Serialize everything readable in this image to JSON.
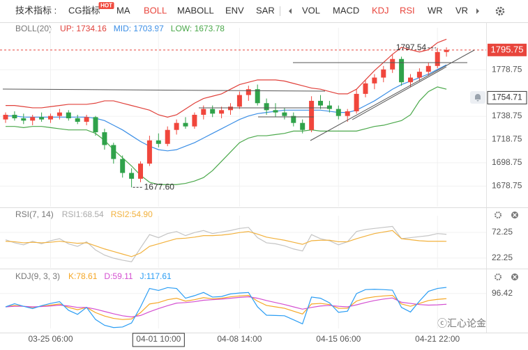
{
  "toolbar": {
    "label": "技术指标 :",
    "tabs": [
      {
        "name": "CG指标",
        "badge": "HOT"
      },
      {
        "name": "MA"
      },
      {
        "name": "BOLL",
        "active": true
      },
      {
        "name": "MABOLL"
      },
      {
        "name": "ENV"
      },
      {
        "name": "SAR"
      },
      {
        "name": "VOL"
      },
      {
        "name": "MACD"
      },
      {
        "name": "KDJ",
        "active": true
      },
      {
        "name": "RSI",
        "active": true
      },
      {
        "name": "WR"
      },
      {
        "name": "VR"
      }
    ]
  },
  "watermark": "ⓒ汇心论金",
  "chart_data": [
    {
      "type": "candlestick",
      "legend_title": "BOLL(20)",
      "categories": [
        null,
        null,
        null,
        null,
        null,
        "03-25 06:00",
        null,
        null,
        null,
        null,
        null,
        null,
        null,
        null,
        null,
        null,
        null,
        "04-01 10:00",
        null,
        null,
        null,
        null,
        null,
        null,
        null,
        null,
        "04-08 14:00",
        null,
        null,
        null,
        null,
        null,
        null,
        null,
        null,
        null,
        null,
        "04-15 06:00",
        null,
        null,
        null,
        null,
        null,
        null,
        null,
        null,
        null,
        null,
        "04-21 22:00",
        null
      ],
      "open": [
        1736,
        1740,
        1737,
        1735,
        1738,
        1736,
        1739,
        1742,
        1737,
        1734,
        1738,
        1725,
        1714,
        1702,
        1690,
        1685,
        1698,
        1718,
        1715,
        1727,
        1733,
        1730,
        1740,
        1745,
        1741,
        1744,
        1747,
        1757,
        1762,
        1750,
        1744,
        1742,
        1739,
        1733,
        1727,
        1752,
        1748,
        1745,
        1739,
        1743,
        1758,
        1767,
        1772,
        1779,
        1788,
        1768,
        1772,
        1777,
        1782,
        1794
      ],
      "high": [
        1742,
        1743,
        1741,
        1740,
        1742,
        1741,
        1745,
        1744,
        1740,
        1740,
        1739,
        1728,
        1716,
        1705,
        1694,
        1700,
        1722,
        1724,
        1730,
        1736,
        1738,
        1742,
        1748,
        1748,
        1747,
        1750,
        1760,
        1765,
        1766,
        1754,
        1750,
        1746,
        1742,
        1736,
        1756,
        1757,
        1752,
        1748,
        1745,
        1762,
        1770,
        1775,
        1782,
        1792,
        1790,
        1775,
        1780,
        1785,
        1797.54,
        1798
      ],
      "low": [
        1733,
        1735,
        1732,
        1731,
        1734,
        1733,
        1736,
        1735,
        1732,
        1731,
        1722,
        1710,
        1698,
        1686,
        1677.6,
        1682,
        1696,
        1712,
        1713,
        1723,
        1728,
        1728,
        1736,
        1738,
        1737,
        1740,
        1745,
        1752,
        1748,
        1740,
        1738,
        1736,
        1730,
        1724,
        1725,
        1745,
        1742,
        1736,
        1734,
        1741,
        1755,
        1762,
        1768,
        1776,
        1765,
        1764,
        1769,
        1774,
        1780,
        1790
      ],
      "close": [
        1740,
        1737,
        1735,
        1738,
        1736,
        1739,
        1742,
        1737,
        1734,
        1738,
        1725,
        1714,
        1702,
        1690,
        1685,
        1698,
        1718,
        1715,
        1727,
        1733,
        1730,
        1740,
        1745,
        1741,
        1744,
        1747,
        1757,
        1762,
        1750,
        1744,
        1742,
        1739,
        1733,
        1727,
        1752,
        1748,
        1745,
        1739,
        1743,
        1758,
        1767,
        1772,
        1779,
        1788,
        1768,
        1772,
        1777,
        1782,
        1794,
        1795.75
      ],
      "up_color": "#f0463c",
      "down_color": "#2fa24a",
      "series": [
        {
          "name": "UP",
          "legend_label": "UP: 1734.16",
          "color": "#e0403a",
          "values": [
            1748,
            1748,
            1747,
            1746,
            1746,
            1747,
            1748,
            1749,
            1749,
            1749,
            1750,
            1752,
            1752,
            1750,
            1748,
            1746,
            1744,
            1740,
            1738,
            1740,
            1745,
            1750,
            1754,
            1756,
            1758,
            1762,
            1766,
            1768,
            1770,
            1770,
            1770,
            1769,
            1767,
            1765,
            1763,
            1762,
            1760,
            1758,
            1758,
            1762,
            1770,
            1778,
            1785,
            1792,
            1798,
            1796,
            1794,
            1796,
            1802,
            1805
          ]
        },
        {
          "name": "MID",
          "legend_label": "MID: 1703.97",
          "color": "#3a8ee6",
          "values": [
            1739,
            1739,
            1738,
            1738,
            1738,
            1738,
            1738,
            1738,
            1738,
            1738,
            1737,
            1735,
            1731,
            1727,
            1722,
            1717,
            1713,
            1710,
            1709,
            1710,
            1713,
            1716,
            1720,
            1724,
            1728,
            1732,
            1736,
            1739,
            1741,
            1742,
            1743,
            1744,
            1744,
            1744,
            1744,
            1744,
            1743,
            1742,
            1742,
            1744,
            1748,
            1752,
            1757,
            1762,
            1766,
            1769,
            1772,
            1775,
            1779,
            1783
          ]
        },
        {
          "name": "LOW",
          "legend_label": "LOW: 1673.78",
          "color": "#4aa84a",
          "values": [
            1730,
            1730,
            1729,
            1730,
            1730,
            1729,
            1728,
            1727,
            1727,
            1727,
            1724,
            1718,
            1710,
            1703,
            1696,
            1688,
            1682,
            1680,
            1680,
            1680,
            1681,
            1683,
            1686,
            1692,
            1700,
            1708,
            1716,
            1720,
            1722,
            1722,
            1723,
            1724,
            1726,
            1726,
            1727,
            1726,
            1726,
            1726,
            1726,
            1726,
            1728,
            1730,
            1731,
            1733,
            1735,
            1740,
            1752,
            1760,
            1764,
            1762
          ]
        }
      ],
      "ylim": [
        1661,
        1810
      ],
      "yticks": [
        1678.75,
        1698.75,
        1718.75,
        1738.75,
        1778.75
      ],
      "grid": true,
      "last_price": 1795.75,
      "crosshair": {
        "index": 17,
        "price": 1754.71
      },
      "annotations": [
        {
          "index": 48,
          "value": 1797.54,
          "side": "left"
        },
        {
          "index": 14,
          "value": 1677.6,
          "label": "1677.60",
          "side": "right"
        }
      ]
    },
    {
      "type": "line",
      "legend_title": "RSI(7, 14)",
      "series": [
        {
          "name": "RSI1",
          "legend_label": "RSI1:68.54",
          "color": "#c4c4c4",
          "values": [
            58,
            52,
            48,
            55,
            50,
            56,
            60,
            50,
            45,
            54,
            38,
            28,
            22,
            18,
            15,
            42,
            68,
            62,
            70,
            74,
            66,
            72,
            76,
            70,
            73,
            76,
            80,
            82,
            62,
            52,
            50,
            46,
            40,
            36,
            68,
            60,
            56,
            48,
            54,
            74,
            78,
            80,
            82,
            84,
            60,
            62,
            64,
            66,
            70,
            68.54
          ]
        },
        {
          "name": "RSI2",
          "legend_label": "RSI2:54.90",
          "color": "#f2b13c",
          "values": [
            55,
            54,
            52,
            53,
            52,
            53,
            55,
            53,
            51,
            52,
            46,
            40,
            35,
            30,
            25,
            32,
            45,
            50,
            55,
            60,
            61,
            63,
            66,
            66,
            67,
            69,
            72,
            74,
            69,
            63,
            60,
            57,
            53,
            49,
            56,
            57,
            57,
            54,
            54,
            60,
            65,
            70,
            73,
            76,
            60,
            58,
            56,
            55,
            55,
            54.9
          ]
        }
      ],
      "ylim": [
        3,
        94
      ],
      "yticks": [
        72.25,
        22.25
      ],
      "grid": true
    },
    {
      "type": "line",
      "legend_title": "KDJ(9, 3, 3)",
      "series": [
        {
          "name": "K",
          "legend_label": "K:78.61",
          "color": "#f5a623",
          "values": [
            50,
            55,
            52,
            48,
            52,
            56,
            60,
            48,
            40,
            48,
            30,
            18,
            10,
            6,
            8,
            30,
            60,
            65,
            75,
            80,
            70,
            75,
            82,
            78,
            80,
            85,
            88,
            90,
            70,
            55,
            50,
            45,
            35,
            25,
            60,
            62,
            58,
            45,
            45,
            70,
            80,
            85,
            88,
            90,
            60,
            52,
            62,
            72,
            76,
            78.61
          ]
        },
        {
          "name": "D",
          "legend_label": "D:59.11",
          "color": "#d44fd1",
          "values": [
            50,
            52,
            52,
            50,
            51,
            53,
            56,
            53,
            48,
            48,
            42,
            34,
            26,
            19,
            15,
            20,
            33,
            44,
            54,
            63,
            65,
            68,
            73,
            75,
            77,
            80,
            83,
            85,
            80,
            72,
            65,
            58,
            50,
            42,
            48,
            53,
            55,
            52,
            50,
            57,
            65,
            72,
            77,
            81,
            66,
            62,
            58,
            56,
            57,
            59.11
          ]
        },
        {
          "name": "J",
          "legend_label": "J:117.61",
          "color": "#2a9df4",
          "values": [
            50,
            61,
            52,
            44,
            54,
            62,
            68,
            38,
            24,
            48,
            6,
            -14,
            -22,
            -20,
            -6,
            50,
            114,
            107,
            117,
            114,
            80,
            89,
            100,
            84,
            86,
            95,
            98,
            100,
            50,
            21,
            20,
            19,
            5,
            -9,
            84,
            80,
            64,
            31,
            35,
            96,
            110,
            111,
            110,
            108,
            48,
            32,
            70,
            104,
            114,
            117.61
          ]
        }
      ],
      "ylim": [
        -25,
        125
      ],
      "yticks": [
        96.42
      ],
      "grid": true
    }
  ]
}
